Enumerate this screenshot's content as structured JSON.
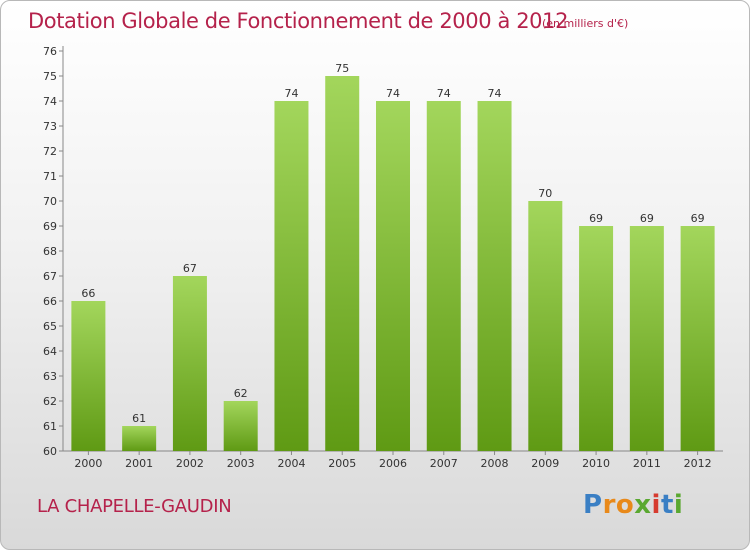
{
  "header": {
    "title": "Dotation Globale de Fonctionnement de 2000 à 2012",
    "unit": "(en milliers d'€)"
  },
  "footer": {
    "commune": "LA CHAPELLE-GAUDIN",
    "logo_text": "Proxiti"
  },
  "colors": {
    "title": "#b5224b",
    "bar_light": "#9fd35a",
    "bar_dark": "#5f9a14"
  },
  "chart_data": {
    "type": "bar",
    "title": "Dotation Globale de Fonctionnement de 2000 à 2012",
    "subtitle": "(en milliers d'€)",
    "categories": [
      "2000",
      "2001",
      "2002",
      "2003",
      "2004",
      "2005",
      "2006",
      "2007",
      "2008",
      "2009",
      "2010",
      "2011",
      "2012"
    ],
    "values": [
      66,
      61,
      67,
      62,
      74,
      75,
      74,
      74,
      74,
      70,
      69,
      69,
      69
    ],
    "ylim": [
      60,
      76
    ],
    "yticks": [
      60,
      61,
      62,
      63,
      64,
      65,
      66,
      67,
      68,
      69,
      70,
      71,
      72,
      73,
      74,
      75,
      76
    ],
    "grid": false,
    "legend": "none"
  }
}
